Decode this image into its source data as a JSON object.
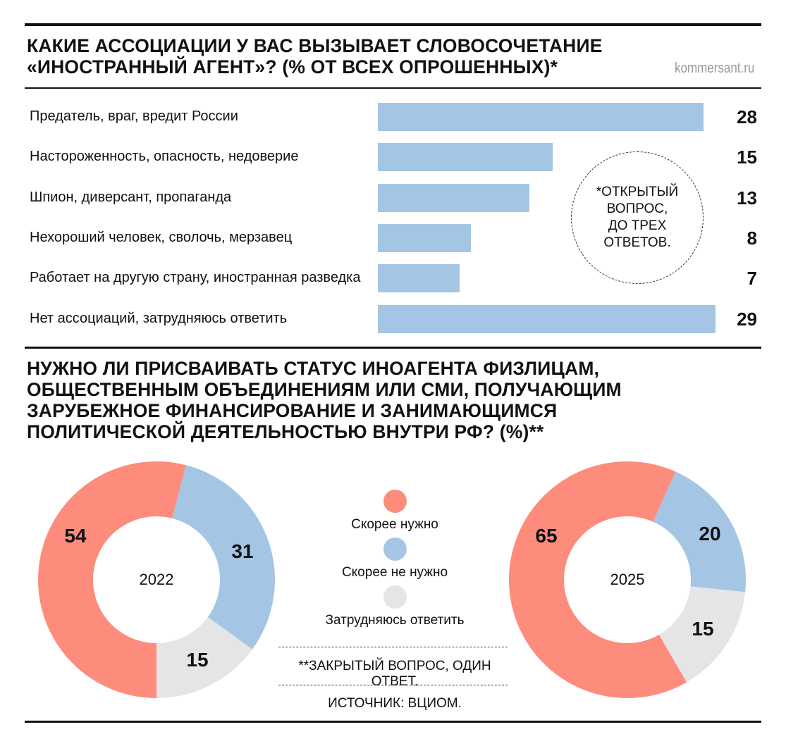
{
  "site": "kommersant.ru",
  "colors": {
    "need": "#fd8c7c",
    "no_need": "#a4c6e4",
    "unsure": "#e5e5e5",
    "bar": "#a4c6e4"
  },
  "chart_data": [
    {
      "type": "bar",
      "orientation": "horizontal",
      "title_lines": [
        "КАКИЕ АССОЦИАЦИИ У ВАС ВЫЗЫВАЕТ СЛОВОСОЧЕТАНИЕ",
        "«ИНОСТРАННЫЙ АГЕНТ»? (% ОТ ВСЕХ ОПРОШЕННЫХ)*"
      ],
      "categories": [
        "Предатель, враг, вредит России",
        "Настороженность, опасность, недоверие",
        "Шпион, диверсант,  пропаганда",
        "Нехороший человек, сволочь, мерзавец",
        "Работает на другую страну, иностранная разведка",
        "Нет ассоциаций, затрудняюсь ответить"
      ],
      "values": [
        28,
        15,
        13,
        8,
        7,
        29
      ],
      "value_labels": [
        "28",
        "15",
        "13",
        "8",
        "7",
        "29"
      ],
      "xlim": [
        0,
        29
      ],
      "note_lines": [
        "*ОТКРЫТЫЙ",
        "ВОПРОС,",
        "ДО ТРЕХ",
        "ОТВЕТОВ."
      ]
    },
    {
      "type": "pie",
      "title_lines": [
        "НУЖНО ЛИ ПРИСВАИВАТЬ СТАТУС ИНОАГЕНТА ФИЗЛИЦАМ,",
        "ОБЩЕСТВЕННЫМ ОБЪЕДИНЕНИЯМ ИЛИ СМИ, ПОЛУЧАЮЩИМ",
        "ЗАРУБЕЖНОЕ ФИНАНСИРОВАНИЕ И ЗАНИМАЮЩИМСЯ",
        "ПОЛИТИЧЕСКОЙ ДЕЯТЕЛЬНОСТЬЮ ВНУТРИ РФ? (%)**"
      ],
      "legend": [
        "Скорее нужно",
        "Скорее не нужно",
        "Затрудняюсь ответить"
      ],
      "donuts": [
        {
          "year": "2022",
          "values": [
            54,
            31,
            15
          ],
          "labels": [
            "54",
            "31",
            "15"
          ]
        },
        {
          "year": "2025",
          "values": [
            65,
            20,
            15
          ],
          "labels": [
            "65",
            "20",
            "15"
          ]
        }
      ],
      "footnote": "**ЗАКРЫТЫЙ ВОПРОС, ОДИН ОТВЕТ.",
      "source": "ИСТОЧНИК: ВЦИОМ."
    }
  ]
}
